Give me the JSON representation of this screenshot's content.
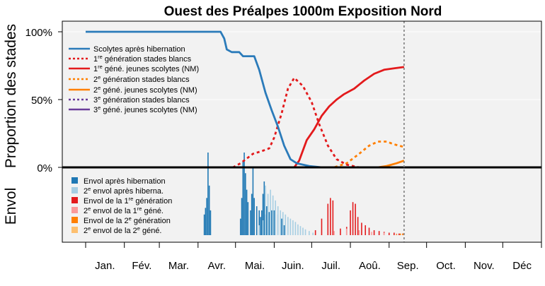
{
  "chart_data": {
    "type": "line",
    "title": "Ouest des Préalpes 1000m Exposition Nord",
    "ylabel_top": "Proportion des stades",
    "ylabel_bottom": "Envol",
    "y_ticks": [
      "100%",
      "50%",
      "0%"
    ],
    "ylim_top": [
      0,
      1
    ],
    "months": [
      "Jan.",
      "Fév.",
      "Mar.",
      "Avr.",
      "Mai.",
      "Juin.",
      "Juil.",
      "Aoû.",
      "Sep.",
      "Oct.",
      "Nov.",
      "Déc"
    ],
    "x_unit": "day of year",
    "current_day": 256,
    "series": [
      {
        "name": "Scolytes après hibernation",
        "color": "#2b7bba",
        "dash": "solid",
        "points": [
          [
            1,
            1.0
          ],
          [
            75,
            1.0
          ],
          [
            109,
            1.0
          ],
          [
            112,
            0.95
          ],
          [
            114,
            0.87
          ],
          [
            118,
            0.85
          ],
          [
            124,
            0.85
          ],
          [
            127,
            0.82
          ],
          [
            136,
            0.82
          ],
          [
            140,
            0.72
          ],
          [
            145,
            0.55
          ],
          [
            150,
            0.42
          ],
          [
            155,
            0.3
          ],
          [
            160,
            0.16
          ],
          [
            165,
            0.06
          ],
          [
            170,
            0.03
          ],
          [
            180,
            0.01
          ],
          [
            190,
            0.0
          ],
          [
            256,
            0.0
          ]
        ]
      },
      {
        "name": "1re génération stades blancs",
        "color": "#e31a1c",
        "dash": "dotted",
        "points": [
          [
            1,
            0.0
          ],
          [
            119,
            0.0
          ],
          [
            125,
            0.03
          ],
          [
            135,
            0.1
          ],
          [
            142,
            0.12
          ],
          [
            148,
            0.14
          ],
          [
            152,
            0.22
          ],
          [
            158,
            0.4
          ],
          [
            163,
            0.58
          ],
          [
            168,
            0.66
          ],
          [
            175,
            0.6
          ],
          [
            182,
            0.48
          ],
          [
            188,
            0.32
          ],
          [
            195,
            0.16
          ],
          [
            202,
            0.06
          ],
          [
            210,
            0.02
          ],
          [
            220,
            0.0
          ],
          [
            256,
            0.0
          ]
        ]
      },
      {
        "name": "1re géné. jeunes scolytes (NM)",
        "color": "#e31a1c",
        "dash": "solid",
        "points": [
          [
            1,
            0.0
          ],
          [
            168,
            0.0
          ],
          [
            172,
            0.05
          ],
          [
            178,
            0.2
          ],
          [
            184,
            0.28
          ],
          [
            190,
            0.38
          ],
          [
            196,
            0.45
          ],
          [
            202,
            0.5
          ],
          [
            208,
            0.54
          ],
          [
            216,
            0.58
          ],
          [
            224,
            0.64
          ],
          [
            232,
            0.69
          ],
          [
            240,
            0.72
          ],
          [
            248,
            0.73
          ],
          [
            256,
            0.74
          ]
        ]
      },
      {
        "name": "2e génération stades blancs",
        "color": "#ff7f00",
        "dash": "dotted",
        "points": [
          [
            1,
            0.0
          ],
          [
            200,
            0.0
          ],
          [
            210,
            0.03
          ],
          [
            220,
            0.1
          ],
          [
            228,
            0.16
          ],
          [
            235,
            0.19
          ],
          [
            242,
            0.19
          ],
          [
            248,
            0.17
          ],
          [
            256,
            0.15
          ]
        ]
      },
      {
        "name": "2e géné. jeunes scolytes (NM)",
        "color": "#ff7f00",
        "dash": "solid",
        "points": [
          [
            1,
            0.0
          ],
          [
            235,
            0.0
          ],
          [
            242,
            0.01
          ],
          [
            250,
            0.03
          ],
          [
            256,
            0.05
          ]
        ]
      },
      {
        "name": "3e génération stades blancs",
        "color": "#6a3d9a",
        "dash": "dotted",
        "points": [
          [
            1,
            0.0
          ],
          [
            256,
            0.0
          ]
        ]
      },
      {
        "name": "3e géné. jeunes scolytes (NM)",
        "color": "#6a3d9a",
        "dash": "solid",
        "points": [
          [
            1,
            0.0
          ],
          [
            256,
            0.0
          ]
        ]
      }
    ],
    "flight_legend": [
      {
        "name": "Envol après hibernation",
        "color": "#1f78b4"
      },
      {
        "name": "2e envol après hiberna.",
        "color": "#a6cee3"
      },
      {
        "name": "Envol de la 1re génération",
        "color": "#e31a1c"
      },
      {
        "name": "2e envol de la 1re géné.",
        "color": "#fb9a99"
      },
      {
        "name": "Envol de la 2e génération",
        "color": "#ff7f00"
      },
      {
        "name": "2e envol de la 2e géné.",
        "color": "#fdbf6f"
      }
    ],
    "flight_bars": {
      "after_hibernation": [
        [
          96,
          0.25
        ],
        [
          97,
          0.33
        ],
        [
          98,
          0.45
        ],
        [
          99,
          1.0
        ],
        [
          100,
          0.6
        ],
        [
          101,
          0.3
        ],
        [
          125,
          0.2
        ],
        [
          126,
          0.45
        ],
        [
          127,
          0.9
        ],
        [
          128,
          1.0
        ],
        [
          129,
          0.75
        ],
        [
          130,
          0.55
        ],
        [
          131,
          0.4
        ],
        [
          133,
          0.3
        ],
        [
          134,
          0.5
        ],
        [
          135,
          0.82
        ],
        [
          136,
          0.45
        ],
        [
          138,
          0.35
        ],
        [
          140,
          0.3
        ],
        [
          141,
          0.22
        ],
        [
          142,
          0.3
        ],
        [
          143,
          0.5
        ],
        [
          144,
          0.65
        ],
        [
          145,
          0.25
        ],
        [
          146,
          0.35
        ],
        [
          148,
          0.28
        ],
        [
          150,
          0.3
        ],
        [
          152,
          0.3
        ],
        [
          155,
          0.25
        ],
        [
          158,
          0.2
        ],
        [
          160,
          0.12
        ]
      ],
      "second_after_hibernation": [
        [
          140,
          0.12
        ],
        [
          143,
          0.18
        ],
        [
          145,
          0.6
        ],
        [
          147,
          0.5
        ],
        [
          149,
          0.55
        ],
        [
          151,
          0.48
        ],
        [
          153,
          0.42
        ],
        [
          155,
          0.35
        ],
        [
          157,
          0.3
        ],
        [
          159,
          0.28
        ],
        [
          161,
          0.25
        ],
        [
          163,
          0.22
        ],
        [
          165,
          0.2
        ],
        [
          167,
          0.18
        ],
        [
          169,
          0.16
        ],
        [
          171,
          0.13
        ],
        [
          173,
          0.11
        ],
        [
          175,
          0.09
        ],
        [
          177,
          0.07
        ],
        [
          180,
          0.05
        ],
        [
          183,
          0.03
        ]
      ],
      "first_generation": [
        [
          185,
          0.06
        ],
        [
          190,
          0.2
        ],
        [
          195,
          0.38
        ],
        [
          197,
          0.45
        ],
        [
          199,
          0.42
        ],
        [
          205,
          0.08
        ],
        [
          210,
          0.1
        ],
        [
          213,
          0.3
        ],
        [
          215,
          0.4
        ],
        [
          217,
          0.38
        ],
        [
          219,
          0.22
        ],
        [
          222,
          0.15
        ],
        [
          225,
          0.12
        ],
        [
          228,
          0.09
        ],
        [
          232,
          0.06
        ],
        [
          236,
          0.05
        ],
        [
          240,
          0.04
        ],
        [
          244,
          0.03
        ],
        [
          248,
          0.03
        ],
        [
          252,
          0.02
        ],
        [
          255,
          0.02
        ]
      ],
      "second_first_generation": [
        [
          200,
          0.05
        ],
        [
          210,
          0.08
        ],
        [
          220,
          0.06
        ],
        [
          230,
          0.04
        ],
        [
          240,
          0.03
        ],
        [
          250,
          0.02
        ]
      ],
      "second_generation": [
        [
          250,
          0.01
        ],
        [
          253,
          0.02
        ],
        [
          255,
          0.02
        ]
      ],
      "second_second_generation": []
    }
  }
}
